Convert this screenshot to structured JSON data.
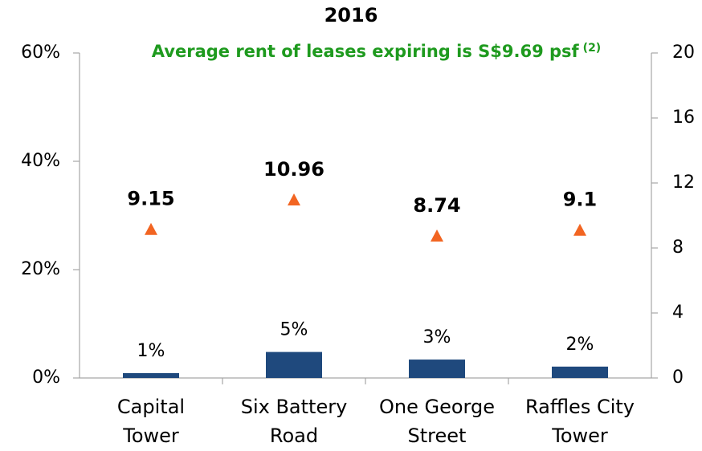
{
  "chart_data": {
    "type": "combo",
    "title": "2016",
    "subtitle": "Average rent of leases expiring is S$9.69 psf",
    "subtitle_note": "(2)",
    "categories": [
      [
        "Capital",
        "Tower"
      ],
      [
        "Six Battery",
        "Road"
      ],
      [
        "One George",
        "Street"
      ],
      [
        "Raffles City",
        "Tower"
      ]
    ],
    "series": [
      {
        "type": "bar",
        "color": "#1f497d",
        "values": [
          0.9,
          4.8,
          3.4,
          2.1
        ],
        "value_labels": [
          "1%",
          "5%",
          "3%",
          "2%"
        ]
      },
      {
        "type": "scatter",
        "marker": "triangle",
        "axis": "y2",
        "color": "#f26522",
        "values": [
          9.15,
          10.96,
          8.74,
          9.1
        ]
      }
    ],
    "ylim": [
      0,
      60
    ],
    "yticks": [
      {
        "value": 0,
        "label": "0%"
      },
      {
        "value": 20,
        "label": "20%"
      },
      {
        "value": 40,
        "label": "40%"
      },
      {
        "value": 60,
        "label": "60%"
      }
    ],
    "y2lim": [
      0,
      20
    ],
    "y2ticks": [
      0,
      4,
      8,
      12,
      16,
      20
    ]
  }
}
